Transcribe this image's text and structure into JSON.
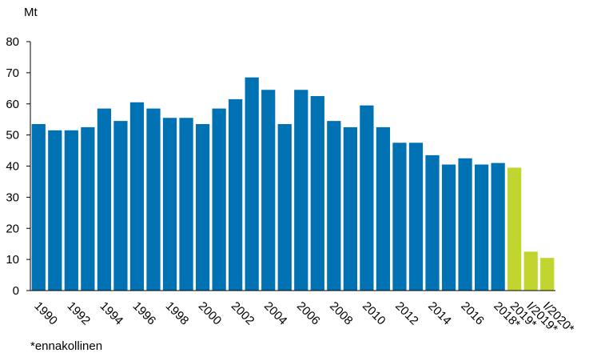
{
  "chart_data": {
    "type": "bar",
    "y_label": "Mt",
    "note": "*ennakollinen",
    "categories": [
      "1990",
      null,
      "1992",
      null,
      "1994",
      null,
      "1996",
      null,
      "1998",
      null,
      "2000",
      null,
      "2002",
      null,
      "2004",
      null,
      "2006",
      null,
      "2008",
      null,
      "2010",
      null,
      "2012",
      null,
      "2014",
      null,
      "2016",
      null,
      "2018*",
      "2019*",
      "I/2019*",
      "I/2020*"
    ],
    "values": [
      53.5,
      51.5,
      51.5,
      52.5,
      58.5,
      54.5,
      60.5,
      58.5,
      55.5,
      55.5,
      53.5,
      58.5,
      61.5,
      68.5,
      64.5,
      53.5,
      64.5,
      62.5,
      54.5,
      52.5,
      59.5,
      52.5,
      47.5,
      47.5,
      43.5,
      40.5,
      42.5,
      40.5,
      41,
      39.5,
      12.5,
      10.5
    ],
    "colors": [
      "#0071b3",
      "#0071b3",
      "#0071b3",
      "#0071b3",
      "#0071b3",
      "#0071b3",
      "#0071b3",
      "#0071b3",
      "#0071b3",
      "#0071b3",
      "#0071b3",
      "#0071b3",
      "#0071b3",
      "#0071b3",
      "#0071b3",
      "#0071b3",
      "#0071b3",
      "#0071b3",
      "#0071b3",
      "#0071b3",
      "#0071b3",
      "#0071b3",
      "#0071b3",
      "#0071b3",
      "#0071b3",
      "#0071b3",
      "#0071b3",
      "#0071b3",
      "#0071b3",
      "#c2d52e",
      "#c2d52e",
      "#c2d52e"
    ],
    "ylim": [
      0,
      80
    ],
    "yticks": [
      0,
      10,
      20,
      30,
      40,
      50,
      60,
      70,
      80
    ],
    "grid": false
  }
}
